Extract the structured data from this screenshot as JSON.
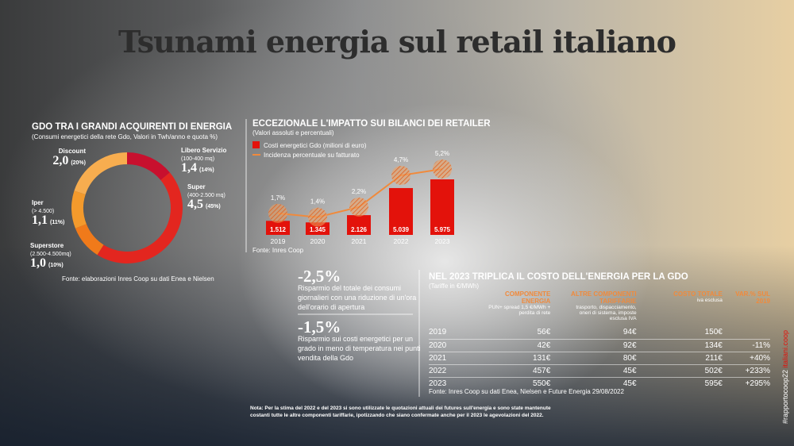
{
  "title": "Tsunami energia sul retail italiano",
  "chart_data": [
    {
      "type": "pie",
      "title": "GDO TRA I GRANDI ACQUIRENTI DI ENERGIA",
      "subtitle": "(Consumi energetici della rete Gdo, Valori in Twh/anno e quota %)",
      "categories": [
        "Libero Servizio",
        "Super",
        "Superstore",
        "Iper",
        "Discount"
      ],
      "category_notes": [
        "(100-400 mq)",
        "(400-2.500 mq)",
        "(2.500-4.500mq)",
        "(> 4.500)",
        null
      ],
      "values": [
        1.4,
        4.5,
        1.0,
        1.1,
        2.0
      ],
      "value_labels": [
        "1,4",
        "4,5",
        "1,0",
        "1,1",
        "2,0"
      ],
      "percent_labels": [
        "(14%)",
        "(45%)",
        "(10%)",
        "(11%)",
        "(20%)"
      ],
      "colors": [
        "#c8102e",
        "#e3261f",
        "#f07a1a",
        "#f39a2c",
        "#f7ad4f"
      ],
      "source": "Fonte: elaborazioni Inres Coop su dati Enea e Nielsen"
    },
    {
      "type": "bar",
      "title": "ECCEZIONALE L'IMPATTO SUI BILANCI DEI RETAILER",
      "subtitle": "(Valori assoluti e percentuali)",
      "categories": [
        "2019",
        "2020",
        "2021",
        "2022",
        "2023"
      ],
      "series": [
        {
          "name": "Costi energetici Gdo (milioni di euro)",
          "color": "#e3120b",
          "values": [
            1512,
            1345,
            2126,
            5039,
            5975
          ],
          "value_labels": [
            "1.512",
            "1.345",
            "2.126",
            "5.039",
            "5.975"
          ]
        },
        {
          "name": "Incidenza percentuale su fatturato",
          "color": "#f08a3c",
          "type": "line",
          "axis": "y2",
          "values": [
            1.7,
            1.4,
            2.2,
            4.7,
            5.2
          ],
          "value_labels": [
            "1,7%",
            "1,4%",
            "2,2%",
            "4,7%",
            "5,2%"
          ]
        }
      ],
      "source": "Fonte: Inres Coop"
    }
  ],
  "highlights": [
    {
      "value": "-2,5%",
      "text": "Risparmio del totale dei consumi giornalieri con una riduzione di un'ora dell'orario di apertura"
    },
    {
      "value": "-1,5%",
      "text": "Risparmio sui costi energetici per un grado in meno di temperatura nei punti vendita della Gdo"
    }
  ],
  "table": {
    "title": "NEL 2023 TRIPLICA IL COSTO DELL'ENERGIA PER LA GDO",
    "subtitle": "(Tariffe in €/MWh)",
    "columns": [
      {
        "label": "COMPONENTE ENERGIA",
        "note": "PUN+ spread 1,5 €/MWh + perdita di rete"
      },
      {
        "label": "ALTRE COMPONENTI TARIFFARIE",
        "note": "trasporto, dispacciamento, oneri di sistema, imposte esclusa IVA"
      },
      {
        "label": "COSTO TOTALE",
        "note": "iva esclusa"
      },
      {
        "label": "VAR.% SUL 2019"
      }
    ],
    "rows": [
      [
        "2019",
        "56€",
        "94€",
        "150€",
        null
      ],
      [
        "2020",
        "42€",
        "92€",
        "134€",
        "-11%"
      ],
      [
        "2021",
        "131€",
        "80€",
        "211€",
        "+40%"
      ],
      [
        "2022",
        "457€",
        "45€",
        "502€",
        "+233%"
      ],
      [
        "2023",
        "550€",
        "45€",
        "595€",
        "+295%"
      ]
    ],
    "source": "Fonte: Inres Coop su dati Enea, Nielsen e Future Energia 29/08/2022"
  },
  "note": "Nota: Per la stima del 2022 e del 2023 si sono utilizzate le quotazioni attuali dei futures sull'energia e sono state mantenute costanti tutte le altre componenti tariffarie, ipotizzando che siano confermate anche per il 2023 le agevolazioni del 2022.",
  "hashtag": "#rapportocoop22",
  "site": "italiani.coop"
}
